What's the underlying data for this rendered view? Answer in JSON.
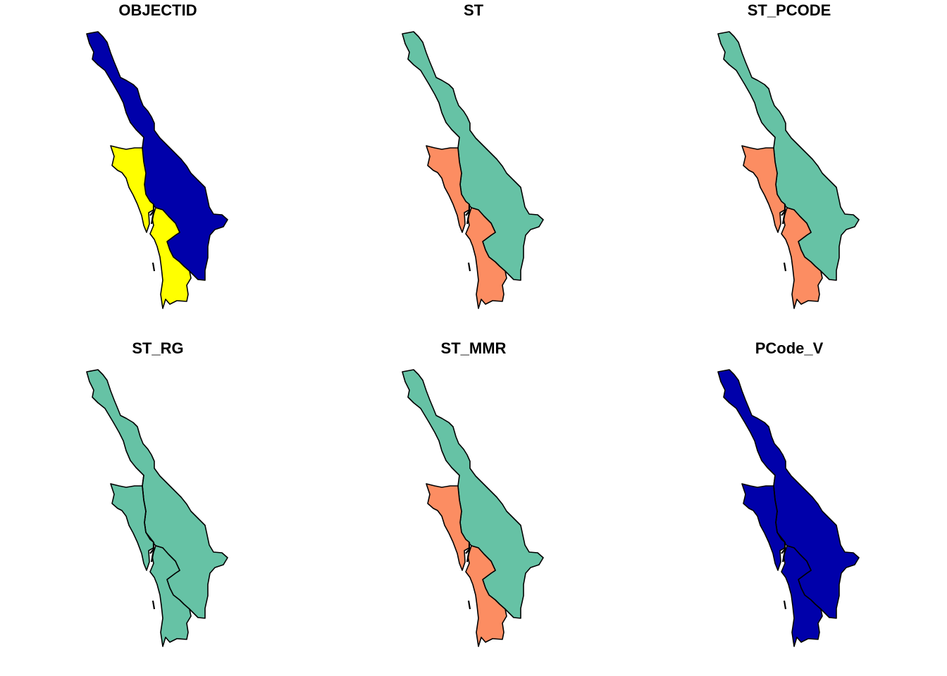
{
  "figure": {
    "panels": [
      {
        "title": "OBJECTID",
        "colors": {
          "upper": "#0000AA",
          "west": "#FFFF00",
          "south": "#FFFF00"
        },
        "divider_north": false
      },
      {
        "title": "ST",
        "colors": {
          "upper": "#66C2A5",
          "west": "#FC8D62",
          "south": "#FC8D62"
        },
        "divider_north": false
      },
      {
        "title": "ST_PCODE",
        "colors": {
          "upper": "#66C2A5",
          "west": "#FC8D62",
          "south": "#FC8D62"
        },
        "divider_north": false
      },
      {
        "title": "ST_RG",
        "colors": {
          "upper": "#66C2A5",
          "west": "#66C2A5",
          "south": "#66C2A5"
        },
        "divider_north": true
      },
      {
        "title": "ST_MMR",
        "colors": {
          "upper": "#66C2A5",
          "west": "#FC8D62",
          "south": "#FC8D62"
        },
        "divider_north": false
      },
      {
        "title": "PCode_V",
        "colors": {
          "upper": "#0000AA",
          "west": "#0000AA",
          "south": "#0000AA"
        },
        "divider_north": true
      }
    ]
  }
}
